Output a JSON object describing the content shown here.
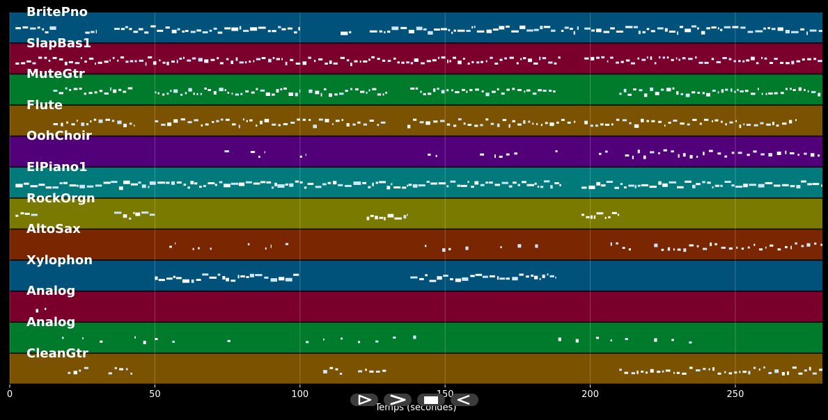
{
  "chart_data": {
    "type": "piano-roll",
    "xlabel": "Temps (secondes)",
    "xlim": [
      0,
      280
    ],
    "xticks": [
      0,
      50,
      100,
      150,
      200,
      250
    ],
    "grid": true,
    "tracks": [
      {
        "name": "BritePno",
        "color": "#00527a",
        "note_density": 0.9,
        "active": [
          [
            2,
            16
          ],
          [
            26,
            30
          ],
          [
            36,
            100
          ],
          [
            114,
            118
          ],
          [
            124,
            188
          ],
          [
            190,
            196
          ],
          [
            198,
            210
          ],
          [
            210,
            280
          ]
        ]
      },
      {
        "name": "SlapBas1",
        "color": "#7a002b",
        "note_density": 0.8,
        "active": [
          [
            2,
            190
          ],
          [
            198,
            280
          ]
        ]
      },
      {
        "name": "MuteGtr",
        "color": "#007a2b",
        "note_density": 0.8,
        "active": [
          [
            15,
            43
          ],
          [
            50,
            100
          ],
          [
            103,
            130
          ],
          [
            138,
            188
          ],
          [
            210,
            280
          ]
        ]
      },
      {
        "name": "Flute",
        "color": "#7a5200",
        "note_density": 0.7,
        "active": [
          [
            15,
            43
          ],
          [
            50,
            130
          ],
          [
            137,
            195
          ],
          [
            198,
            272
          ]
        ]
      },
      {
        "name": "OohChoir",
        "color": "#52007a",
        "note_density": 0.4,
        "active": [
          [
            74,
            76
          ],
          [
            83,
            88
          ],
          [
            100,
            102
          ],
          [
            144,
            148
          ],
          [
            162,
            164
          ],
          [
            167,
            176
          ],
          [
            188,
            190
          ],
          [
            203,
            206
          ],
          [
            212,
            280
          ]
        ]
      },
      {
        "name": "ElPiano1",
        "color": "#007a7a",
        "note_density": 0.95,
        "active": [
          [
            2,
            190
          ],
          [
            197,
            280
          ]
        ]
      },
      {
        "name": "RockOrgn",
        "color": "#7a7a00",
        "note_density": 0.9,
        "active": [
          [
            2,
            10
          ],
          [
            36,
            50
          ],
          [
            123,
            137
          ],
          [
            197,
            210
          ]
        ]
      },
      {
        "name": "AltoSax",
        "color": "#7a2600",
        "note_density": 0.5,
        "active": [
          [
            55,
            57
          ],
          [
            63,
            66
          ],
          [
            69,
            70
          ],
          [
            82,
            83
          ],
          [
            88,
            90
          ],
          [
            95,
            96
          ],
          [
            143,
            144
          ],
          [
            149,
            152
          ],
          [
            157,
            158
          ],
          [
            169,
            170
          ],
          [
            175,
            177
          ],
          [
            181,
            182
          ],
          [
            207,
            214
          ],
          [
            222,
            280
          ]
        ]
      },
      {
        "name": "Xylophon",
        "color": "#00527a",
        "note_density": 0.9,
        "active": [
          [
            50,
            100
          ],
          [
            138,
            188
          ]
        ]
      },
      {
        "name": "Analog",
        "color": "#7a002b",
        "note_density": 0.3,
        "active": [
          [
            9,
            10
          ],
          [
            12,
            13
          ]
        ]
      },
      {
        "name": "Analog",
        "color": "#007a2b",
        "note_density": 0.2,
        "active": [
          [
            18,
            19
          ],
          [
            25,
            26
          ],
          [
            31,
            32
          ],
          [
            43,
            44
          ],
          [
            46,
            47
          ],
          [
            50,
            51
          ],
          [
            56,
            57
          ],
          [
            75,
            76
          ],
          [
            102,
            103
          ],
          [
            108,
            109
          ],
          [
            114,
            115
          ],
          [
            120,
            121
          ],
          [
            126,
            127
          ],
          [
            132,
            133
          ],
          [
            139,
            140
          ],
          [
            189,
            190
          ],
          [
            195,
            196
          ],
          [
            202,
            203
          ],
          [
            207,
            208
          ],
          [
            212,
            213
          ],
          [
            222,
            223
          ],
          [
            228,
            229
          ],
          [
            234,
            235
          ]
        ]
      },
      {
        "name": "CleanGtr",
        "color": "#7a5200",
        "note_density": 0.7,
        "active": [
          [
            20,
            28
          ],
          [
            34,
            43
          ],
          [
            108,
            115
          ],
          [
            120,
            130
          ],
          [
            210,
            280
          ]
        ]
      }
    ]
  },
  "transport": {
    "play_label": "play-icon",
    "forward_label": "forward-icon",
    "stop_label": "stop-icon",
    "rewind_label": "rewind-icon"
  }
}
